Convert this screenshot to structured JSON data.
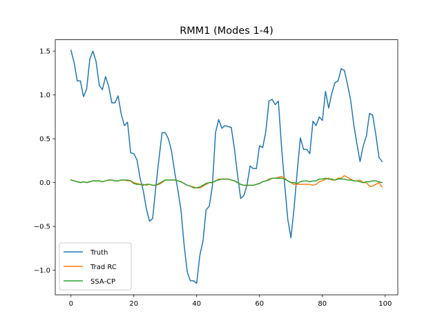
{
  "chart_data": {
    "type": "line",
    "title": "RMM1 (Modes 1-4)",
    "xlabel": "",
    "ylabel": "",
    "xlim": [
      -5,
      104
    ],
    "ylim": [
      -1.28,
      1.63
    ],
    "xticks": [
      0,
      20,
      40,
      60,
      80,
      100
    ],
    "yticks": [
      -1.0,
      -0.5,
      0.0,
      0.5,
      1.0,
      1.5
    ],
    "xtick_labels": [
      "0",
      "20",
      "40",
      "60",
      "80",
      "100"
    ],
    "ytick_labels": [
      "−1.0",
      "−0.5",
      "0.0",
      "0.5",
      "1.0",
      "1.5"
    ],
    "grid": false,
    "legend_position": "lower-left",
    "x": [
      0,
      1,
      2,
      3,
      4,
      5,
      6,
      7,
      8,
      9,
      10,
      11,
      12,
      13,
      14,
      15,
      16,
      17,
      18,
      19,
      20,
      21,
      22,
      23,
      24,
      25,
      26,
      27,
      28,
      29,
      30,
      31,
      32,
      33,
      34,
      35,
      36,
      37,
      38,
      39,
      40,
      41,
      42,
      43,
      44,
      45,
      46,
      47,
      48,
      49,
      50,
      51,
      52,
      53,
      54,
      55,
      56,
      57,
      58,
      59,
      60,
      61,
      62,
      63,
      64,
      65,
      66,
      67,
      68,
      69,
      70,
      71,
      72,
      73,
      74,
      75,
      76,
      77,
      78,
      79,
      80,
      81,
      82,
      83,
      84,
      85,
      86,
      87,
      88,
      89,
      90,
      91,
      92,
      93,
      94,
      95,
      96,
      97,
      98,
      99
    ],
    "series": [
      {
        "name": "Truth",
        "color": "#1f77b4",
        "values": [
          1.51,
          1.37,
          1.16,
          1.16,
          0.98,
          1.07,
          1.41,
          1.5,
          1.38,
          1.11,
          1.06,
          1.21,
          1.1,
          0.91,
          0.91,
          0.99,
          0.78,
          0.65,
          0.69,
          0.34,
          0.33,
          0.26,
          0.05,
          -0.09,
          -0.3,
          -0.44,
          -0.41,
          -0.05,
          0.27,
          0.57,
          0.57,
          0.5,
          0.36,
          0.12,
          -0.08,
          -0.31,
          -0.71,
          -1.02,
          -1.12,
          -1.12,
          -1.15,
          -0.83,
          -0.67,
          -0.31,
          -0.27,
          -0.04,
          0.57,
          0.72,
          0.62,
          0.65,
          0.64,
          0.63,
          0.39,
          0.09,
          -0.18,
          -0.15,
          -0.03,
          0.19,
          0.16,
          0.16,
          0.42,
          0.4,
          0.58,
          0.93,
          0.95,
          0.89,
          0.93,
          0.41,
          -0.02,
          -0.42,
          -0.63,
          -0.29,
          0.13,
          0.51,
          0.38,
          0.38,
          0.33,
          0.7,
          0.65,
          0.75,
          0.71,
          1.04,
          0.85,
          1.02,
          1.14,
          1.16,
          1.3,
          1.28,
          1.12,
          0.94,
          0.66,
          0.44,
          0.24,
          0.42,
          0.53,
          0.79,
          0.77,
          0.55,
          0.29,
          0.24
        ]
      },
      {
        "name": "Trad RC",
        "color": "#ff7f0e",
        "values": [
          0.03,
          0.02,
          0.01,
          0.0,
          0.01,
          0.0,
          0.01,
          0.02,
          0.02,
          0.02,
          0.01,
          0.02,
          0.03,
          0.03,
          0.02,
          0.02,
          0.03,
          0.03,
          0.02,
          0.02,
          0.0,
          -0.01,
          -0.02,
          -0.02,
          -0.03,
          -0.02,
          -0.03,
          -0.03,
          -0.02,
          0.0,
          0.03,
          0.03,
          0.03,
          0.03,
          0.02,
          0.01,
          -0.01,
          -0.03,
          -0.04,
          -0.05,
          -0.06,
          -0.06,
          -0.04,
          -0.02,
          0.0,
          0.0,
          0.02,
          0.04,
          0.04,
          0.04,
          0.04,
          0.03,
          0.02,
          0.0,
          -0.02,
          -0.03,
          -0.03,
          -0.03,
          -0.03,
          -0.02,
          -0.01,
          0.01,
          0.02,
          0.04,
          0.05,
          0.05,
          0.06,
          0.07,
          0.05,
          0.02,
          0.0,
          -0.02,
          -0.02,
          -0.02,
          -0.02,
          -0.02,
          -0.02,
          -0.03,
          -0.02,
          0.01,
          0.02,
          0.04,
          0.05,
          0.03,
          0.03,
          0.05,
          0.05,
          0.08,
          0.06,
          0.04,
          0.02,
          0.02,
          0.03,
          0.0,
          0.0,
          -0.04,
          -0.04,
          -0.02,
          0.0,
          -0.05
        ]
      },
      {
        "name": "SSA-CP",
        "color": "#2ca02c",
        "values": [
          0.03,
          0.02,
          0.01,
          0.0,
          0.01,
          0.0,
          0.01,
          0.02,
          0.02,
          0.02,
          0.01,
          0.02,
          0.03,
          0.03,
          0.02,
          0.02,
          0.03,
          0.03,
          0.03,
          0.02,
          -0.01,
          -0.02,
          -0.02,
          -0.03,
          -0.02,
          -0.02,
          -0.03,
          -0.03,
          -0.01,
          0.01,
          0.03,
          0.03,
          0.03,
          0.03,
          0.02,
          0.01,
          -0.01,
          -0.03,
          -0.04,
          -0.06,
          -0.06,
          -0.05,
          -0.03,
          -0.01,
          0.0,
          0.0,
          0.02,
          0.03,
          0.04,
          0.04,
          0.04,
          0.03,
          0.02,
          0.0,
          -0.02,
          -0.03,
          -0.03,
          -0.03,
          -0.03,
          -0.02,
          -0.01,
          0.01,
          0.02,
          0.03,
          0.05,
          0.05,
          0.05,
          0.05,
          0.04,
          0.02,
          0.0,
          0.0,
          -0.01,
          0.01,
          0.02,
          0.02,
          0.01,
          0.02,
          0.02,
          0.04,
          0.04,
          0.05,
          0.04,
          0.04,
          0.03,
          0.04,
          0.04,
          0.04,
          0.03,
          0.03,
          0.02,
          0.02,
          0.01,
          0.0,
          0.01,
          0.01,
          0.02,
          0.02,
          0.01,
          0.0
        ]
      }
    ]
  }
}
